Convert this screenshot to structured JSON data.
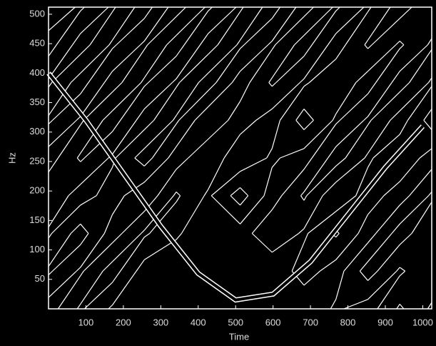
{
  "chart_data": {
    "type": "contour",
    "xlabel": "Time",
    "ylabel": "Hz",
    "xlim": [
      0,
      1024
    ],
    "ylim": [
      0,
      512
    ],
    "xticks": [
      100,
      200,
      300,
      400,
      500,
      600,
      700,
      800,
      900,
      1000
    ],
    "yticks": [
      50,
      100,
      150,
      200,
      250,
      300,
      350,
      400,
      450,
      500
    ],
    "color": "#ffffff",
    "background": "#000000",
    "levels": [
      3.5,
      6.5
    ],
    "z": [
      [
        2,
        7,
        3,
        1,
        0,
        0,
        0,
        0,
        1,
        4,
        2,
        7,
        3
      ],
      [
        7,
        3,
        8,
        2,
        1,
        0,
        0,
        1,
        5,
        2,
        8,
        3,
        6
      ],
      [
        3,
        8,
        2,
        7,
        4,
        1,
        2,
        6,
        3,
        7,
        2,
        8,
        4
      ],
      [
        6,
        2,
        5,
        1,
        7,
        3,
        8,
        2,
        7,
        1,
        5,
        2,
        7
      ],
      [
        2,
        7,
        3,
        8,
        2,
        6,
        1,
        4,
        2,
        8,
        3,
        6,
        2
      ],
      [
        7,
        3,
        8,
        2,
        7,
        1,
        5,
        2,
        8,
        3,
        7,
        2,
        8
      ],
      [
        3,
        8,
        2,
        7,
        3,
        8,
        2,
        7,
        3,
        6,
        2,
        8,
        3
      ],
      [
        8,
        2,
        7,
        3,
        8,
        2,
        7,
        3,
        8,
        2,
        7,
        3,
        7
      ],
      [
        4,
        7,
        3,
        8,
        2,
        7,
        3,
        8,
        2,
        7,
        3,
        8,
        4
      ]
    ],
    "series": [
      {
        "x": [
          0,
          100,
          200,
          300,
          400,
          500,
          600,
          700,
          800,
          900,
          1000
        ],
        "values": [
          400,
          320,
          230,
          140,
          60,
          15,
          25,
          80,
          160,
          240,
          310
        ]
      }
    ]
  }
}
